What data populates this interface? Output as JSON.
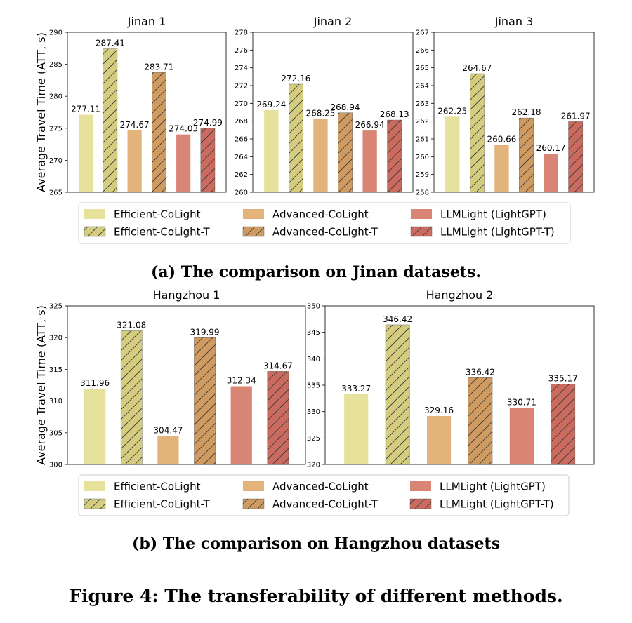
{
  "chart_data": [
    {
      "type": "bar",
      "title": "Jinan 1",
      "ylabel": "Average Travel Time (ATT, s)",
      "ylim": [
        265,
        290
      ],
      "yticks": [
        265,
        270,
        275,
        280,
        285,
        290
      ],
      "categories": [
        "Efficient-CoLight",
        "Efficient-CoLight-T",
        "Advanced-CoLight",
        "Advanced-CoLight-T",
        "LLMLight (LightGPT)",
        "LLMLight (LightGPT-T)"
      ],
      "values": [
        277.11,
        287.41,
        274.67,
        283.71,
        274.03,
        274.99
      ],
      "labels": [
        "277.11",
        "287.41",
        "274.67",
        "283.71",
        "274.03",
        "274.99"
      ]
    },
    {
      "type": "bar",
      "title": "Jinan 2",
      "ylabel": "",
      "ylim": [
        260,
        278
      ],
      "yticks": [
        260,
        262,
        264,
        266,
        268,
        270,
        272,
        274,
        276,
        278
      ],
      "categories": [
        "Efficient-CoLight",
        "Efficient-CoLight-T",
        "Advanced-CoLight",
        "Advanced-CoLight-T",
        "LLMLight (LightGPT)",
        "LLMLight (LightGPT-T)"
      ],
      "values": [
        269.24,
        272.16,
        268.25,
        268.94,
        266.94,
        268.13
      ],
      "labels": [
        "269.24",
        "272.16",
        "268.25",
        "268.94",
        "266.94",
        "268.13"
      ]
    },
    {
      "type": "bar",
      "title": "Jinan 3",
      "ylabel": "",
      "ylim": [
        258,
        267
      ],
      "yticks": [
        258,
        259,
        260,
        261,
        262,
        263,
        264,
        265,
        266,
        267
      ],
      "categories": [
        "Efficient-CoLight",
        "Efficient-CoLight-T",
        "Advanced-CoLight",
        "Advanced-CoLight-T",
        "LLMLight (LightGPT)",
        "LLMLight (LightGPT-T)"
      ],
      "values": [
        262.25,
        264.67,
        260.66,
        262.18,
        260.17,
        261.97
      ],
      "labels": [
        "262.25",
        "264.67",
        "260.66",
        "262.18",
        "260.17",
        "261.97"
      ]
    },
    {
      "type": "bar",
      "title": "Hangzhou 1",
      "ylabel": "Average Travel Time (ATT, s)",
      "ylim": [
        300,
        325
      ],
      "yticks": [
        300,
        305,
        310,
        315,
        320,
        325
      ],
      "categories": [
        "Efficient-CoLight",
        "Efficient-CoLight-T",
        "Advanced-CoLight",
        "Advanced-CoLight-T",
        "LLMLight (LightGPT)",
        "LLMLight (LightGPT-T)"
      ],
      "values": [
        311.96,
        321.08,
        304.47,
        319.99,
        312.34,
        314.67
      ],
      "labels": [
        "311.96",
        "321.08",
        "304.47",
        "319.99",
        "312.34",
        "314.67"
      ]
    },
    {
      "type": "bar",
      "title": "Hangzhou 2",
      "ylabel": "",
      "ylim": [
        320,
        350
      ],
      "yticks": [
        320,
        325,
        330,
        335,
        340,
        345,
        350
      ],
      "categories": [
        "Efficient-CoLight",
        "Efficient-CoLight-T",
        "Advanced-CoLight",
        "Advanced-CoLight-T",
        "LLMLight (LightGPT)",
        "LLMLight (LightGPT-T)"
      ],
      "values": [
        333.27,
        346.42,
        329.16,
        336.42,
        330.71,
        335.17
      ],
      "labels": [
        "333.27",
        "346.42",
        "329.16",
        "336.42",
        "330.71",
        "335.17"
      ]
    }
  ],
  "series_styles": [
    {
      "name": "Efficient-CoLight",
      "color": "#e6e29b",
      "hatch": false
    },
    {
      "name": "Efficient-CoLight-T",
      "color": "#d4cd80",
      "hatch": true
    },
    {
      "name": "Advanced-CoLight",
      "color": "#e2b37a",
      "hatch": false
    },
    {
      "name": "Advanced-CoLight-T",
      "color": "#cf9b61",
      "hatch": true
    },
    {
      "name": "LLMLight (LightGPT)",
      "color": "#d98576",
      "hatch": false
    },
    {
      "name": "LLMLight (LightGPT-T)",
      "color": "#cb6a5e",
      "hatch": true
    }
  ],
  "legend": {
    "entries": [
      "Efficient-CoLight",
      "Efficient-CoLight-T",
      "Advanced-CoLight",
      "Advanced-CoLight-T",
      "LLMLight (LightGPT)",
      "LLMLight (LightGPT-T)"
    ]
  },
  "captions": {
    "jinan": "(a) The comparison on Jinan datasets.",
    "hangzhou": "(b) The comparison on Hangzhou datasets",
    "figure": "Figure 4: The transferability of different methods."
  }
}
